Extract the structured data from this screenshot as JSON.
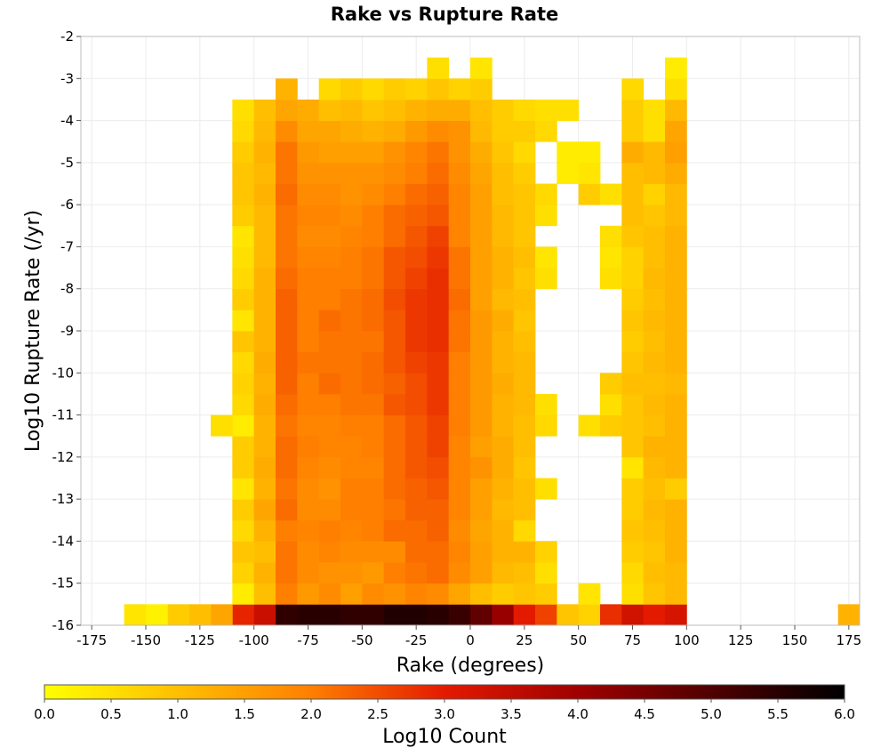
{
  "chart_data": {
    "type": "heatmap",
    "title": "Rake vs Rupture Rate",
    "xlabel": "Rake (degrees)",
    "ylabel": "Log10 Rupture Rate (/yr)",
    "xlim": [
      -180,
      180
    ],
    "ylim": [
      -16,
      -2
    ],
    "x_ticks": [
      -175,
      -150,
      -125,
      -100,
      -75,
      -50,
      -25,
      0,
      25,
      50,
      75,
      100,
      125,
      150,
      175
    ],
    "y_ticks": [
      -2,
      -3,
      -4,
      -5,
      -6,
      -7,
      -8,
      -9,
      -10,
      -11,
      -12,
      -13,
      -14,
      -15,
      -16
    ],
    "x_bin_width": 10,
    "y_bin_width": 0.5,
    "x_bin_starts": [
      -110,
      -100,
      -90,
      -80,
      -70,
      -60,
      -50,
      -40,
      -30,
      -20,
      -10,
      0,
      10,
      20,
      30,
      40,
      50,
      60,
      70,
      80,
      90
    ],
    "y_bin_starts": [
      -16,
      -15.5,
      -15,
      -14.5,
      -14,
      -13.5,
      -13,
      -12.5,
      -12,
      -11.5,
      -11,
      -10.5,
      -10,
      -9.5,
      -9,
      -8.5,
      -8,
      -7.5,
      -7,
      -6.5,
      -6,
      -5.5,
      -5,
      -4.5,
      -4,
      -3.5,
      -3
    ],
    "z_values": [
      [
        2.9,
        3.4,
        5.4,
        5.5,
        5.5,
        5.4,
        5.4,
        5.6,
        5.6,
        5.5,
        5.3,
        4.8,
        4.1,
        3.0,
        2.6,
        0.9,
        0.7,
        2.8,
        3.3,
        3.0,
        3.2
      ],
      [
        0.3,
        1.0,
        2.0,
        1.6,
        1.8,
        1.5,
        1.8,
        1.7,
        1.9,
        1.8,
        1.4,
        1.0,
        0.8,
        0.9,
        0.8,
        null,
        0.4,
        null,
        0.5,
        0.9,
        1.1
      ],
      [
        0.7,
        1.2,
        2.1,
        1.8,
        1.7,
        1.7,
        1.6,
        2.0,
        2.1,
        2.2,
        1.8,
        1.5,
        1.1,
        1.0,
        0.5,
        null,
        null,
        null,
        0.6,
        1.0,
        1.1
      ],
      [
        0.9,
        1.0,
        2.1,
        1.8,
        1.9,
        1.8,
        1.8,
        1.8,
        2.2,
        2.2,
        1.9,
        1.5,
        1.2,
        1.2,
        0.7,
        null,
        null,
        null,
        0.8,
        0.9,
        1.2
      ],
      [
        0.6,
        1.2,
        2.0,
        1.9,
        2.0,
        1.9,
        2.0,
        2.2,
        2.2,
        2.3,
        1.8,
        1.4,
        1.2,
        0.6,
        null,
        null,
        null,
        null,
        0.9,
        1.0,
        1.2
      ],
      [
        0.8,
        1.4,
        2.2,
        1.8,
        1.8,
        2.0,
        2.0,
        2.1,
        2.3,
        2.3,
        1.9,
        1.5,
        1.1,
        1.0,
        null,
        null,
        null,
        null,
        0.8,
        1.1,
        1.2
      ],
      [
        0.4,
        1.2,
        2.1,
        1.8,
        1.7,
        2.0,
        2.0,
        2.2,
        2.3,
        2.4,
        1.9,
        1.5,
        1.2,
        1.0,
        0.5,
        null,
        null,
        null,
        0.8,
        1.0,
        0.8
      ],
      [
        0.8,
        1.3,
        2.2,
        1.9,
        1.8,
        1.9,
        1.9,
        2.2,
        2.4,
        2.5,
        1.9,
        1.7,
        1.3,
        0.9,
        null,
        null,
        null,
        null,
        0.4,
        1.1,
        1.2
      ],
      [
        0.8,
        1.2,
        2.2,
        2.0,
        1.9,
        1.9,
        2.0,
        2.2,
        2.4,
        2.6,
        1.9,
        1.5,
        1.3,
        1.0,
        null,
        null,
        null,
        null,
        0.9,
        1.2,
        1.2
      ],
      [
        0.3,
        1.2,
        2.1,
        1.9,
        1.9,
        2.0,
        2.0,
        2.2,
        2.4,
        2.6,
        2.0,
        1.6,
        1.2,
        1.0,
        0.6,
        null,
        0.5,
        0.8,
        0.9,
        1.0,
        1.2
      ],
      [
        0.6,
        1.3,
        2.2,
        2.0,
        2.0,
        2.1,
        2.1,
        2.4,
        2.5,
        2.7,
        2.0,
        1.6,
        1.2,
        1.1,
        0.5,
        null,
        null,
        0.5,
        0.9,
        1.1,
        1.2
      ],
      [
        0.7,
        1.2,
        2.3,
        2.0,
        2.2,
        2.1,
        2.2,
        2.3,
        2.5,
        2.7,
        2.0,
        1.6,
        1.3,
        1.1,
        null,
        null,
        null,
        0.8,
        1.0,
        1.0,
        1.1
      ],
      [
        0.6,
        1.3,
        2.3,
        2.1,
        2.1,
        2.1,
        2.2,
        2.4,
        2.6,
        2.7,
        2.0,
        1.6,
        1.2,
        1.1,
        null,
        null,
        null,
        null,
        0.9,
        1.1,
        1.2
      ],
      [
        0.9,
        1.2,
        2.3,
        2.0,
        2.1,
        2.1,
        2.1,
        2.4,
        2.7,
        2.8,
        2.1,
        1.6,
        1.2,
        1.0,
        null,
        null,
        null,
        null,
        0.8,
        1.0,
        1.2
      ],
      [
        0.4,
        1.2,
        2.3,
        2.0,
        2.2,
        2.1,
        2.2,
        2.4,
        2.7,
        2.8,
        2.1,
        1.6,
        1.3,
        0.9,
        null,
        null,
        null,
        null,
        0.9,
        1.1,
        1.2
      ],
      [
        0.8,
        1.2,
        2.3,
        2.0,
        2.0,
        2.1,
        2.2,
        2.5,
        2.7,
        2.8,
        2.2,
        1.5,
        1.1,
        1.0,
        null,
        null,
        null,
        null,
        0.8,
        1.0,
        1.2
      ],
      [
        0.6,
        1.2,
        2.2,
        2.0,
        2.0,
        2.0,
        2.1,
        2.4,
        2.6,
        2.8,
        2.1,
        1.5,
        1.2,
        0.9,
        0.5,
        null,
        null,
        0.5,
        0.7,
        1.1,
        1.2
      ],
      [
        0.5,
        1.1,
        2.1,
        1.9,
        1.9,
        2.0,
        2.1,
        2.4,
        2.5,
        2.7,
        2.1,
        1.5,
        1.2,
        1.0,
        0.4,
        null,
        null,
        0.4,
        0.7,
        1.0,
        1.2
      ],
      [
        0.4,
        1.1,
        2.1,
        1.8,
        1.8,
        1.9,
        2.0,
        2.2,
        2.4,
        2.6,
        1.9,
        1.5,
        1.1,
        0.9,
        null,
        null,
        null,
        0.5,
        0.9,
        1.0,
        1.2
      ],
      [
        0.8,
        1.1,
        2.1,
        1.9,
        1.9,
        1.8,
        2.0,
        2.2,
        2.3,
        2.4,
        1.9,
        1.5,
        1.1,
        0.9,
        0.5,
        null,
        null,
        null,
        1.0,
        0.9,
        1.1
      ],
      [
        0.9,
        1.2,
        2.2,
        1.8,
        1.8,
        1.7,
        1.8,
        2.0,
        2.2,
        2.3,
        1.9,
        1.5,
        1.0,
        0.9,
        0.6,
        null,
        0.8,
        0.5,
        1.0,
        0.7,
        1.1
      ],
      [
        0.9,
        1.1,
        2.1,
        1.7,
        1.7,
        1.7,
        1.7,
        1.8,
        2.0,
        2.2,
        1.8,
        1.4,
        1.0,
        0.8,
        null,
        0.3,
        0.4,
        null,
        1.0,
        1.1,
        1.3
      ],
      [
        0.8,
        1.2,
        2.1,
        1.6,
        1.5,
        1.5,
        1.5,
        1.7,
        1.9,
        2.1,
        1.7,
        1.3,
        0.9,
        0.6,
        null,
        0.3,
        0.3,
        null,
        1.3,
        1.1,
        1.5
      ],
      [
        0.6,
        1.1,
        1.8,
        1.4,
        1.4,
        1.3,
        1.2,
        1.3,
        1.6,
        1.8,
        1.7,
        1.1,
        0.8,
        0.8,
        0.6,
        null,
        null,
        null,
        0.8,
        0.5,
        1.4
      ],
      [
        0.5,
        1.0,
        1.4,
        1.3,
        1.0,
        1.1,
        0.9,
        1.0,
        1.2,
        1.3,
        1.3,
        1.0,
        0.8,
        0.6,
        0.5,
        0.5,
        null,
        null,
        0.8,
        0.5,
        1.1
      ],
      [
        null,
        null,
        1.2,
        null,
        0.6,
        0.8,
        0.6,
        0.8,
        0.7,
        0.9,
        0.7,
        0.8,
        null,
        null,
        null,
        null,
        null,
        null,
        0.6,
        null,
        0.5
      ],
      [
        null,
        null,
        null,
        null,
        null,
        null,
        null,
        null,
        null,
        0.5,
        null,
        0.4,
        null,
        null,
        null,
        null,
        null,
        null,
        null,
        null,
        0.3
      ]
    ],
    "extra_cells": [
      {
        "x": -120,
        "y": -16,
        "z": 1.4
      },
      {
        "x": -130,
        "y": -16,
        "z": 1.0
      },
      {
        "x": -140,
        "y": -16,
        "z": 0.8
      },
      {
        "x": -150,
        "y": -16,
        "z": 0.2
      },
      {
        "x": -160,
        "y": -16,
        "z": 0.4
      },
      {
        "x": -120,
        "y": -11.5,
        "z": 0.5
      },
      {
        "x": 170,
        "y": -16,
        "z": 1.2
      }
    ],
    "colorbar": {
      "label": "Log10 Count",
      "range": [
        0.0,
        6.0
      ],
      "ticks": [
        "0.0",
        "0.5",
        "1.0",
        "1.5",
        "2.0",
        "2.5",
        "3.0",
        "3.5",
        "4.0",
        "4.5",
        "5.0",
        "5.5",
        "6.0"
      ],
      "colors": [
        "#ffff00",
        "#ffbf00",
        "#ff7f00",
        "#e41a00",
        "#a00000",
        "#500000",
        "#000000"
      ]
    },
    "grid": true
  }
}
